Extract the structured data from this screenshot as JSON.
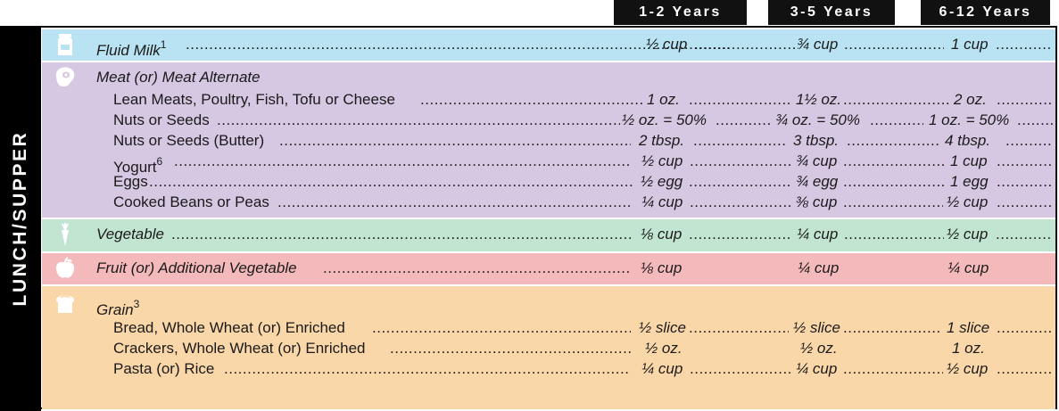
{
  "meal_label": "LUNCH/SUPPER",
  "age_groups": [
    "1-2 Years",
    "3-5 Years",
    "6-12 Years"
  ],
  "colors": {
    "milk": "#b9e3f2",
    "meat": "#d6c7e2",
    "vegetable": "#c2e5d2",
    "fruit": "#f4b9bb",
    "grain": "#fad7a9",
    "header": "#111111"
  },
  "sections": {
    "milk": {
      "icon": "milk-carton-icon",
      "label": "Fluid Milk",
      "note": "1",
      "values": [
        "½ cup",
        "¾ cup",
        "1 cup"
      ]
    },
    "meat": {
      "icon": "steak-icon",
      "label": "Meat (or) Meat Alternate",
      "items": [
        {
          "label": "Lean Meats, Poultry, Fish, Tofu or Cheese",
          "note": "",
          "values": [
            "1 oz.",
            "1½ oz.",
            "2 oz."
          ]
        },
        {
          "label": "Nuts or Seeds",
          "note": "",
          "values": [
            "½ oz. = 50%",
            "¾ oz. = 50%",
            "1 oz. = 50%"
          ]
        },
        {
          "label": "Nuts or Seeds (Butter)",
          "note": "",
          "values": [
            "2 tbsp.",
            "3 tbsp.",
            "4 tbsp."
          ]
        },
        {
          "label": "Yogurt",
          "note": "6",
          "values": [
            "½ cup",
            "¾ cup",
            "1 cup"
          ]
        },
        {
          "label": "Eggs",
          "note": "",
          "values": [
            "½ egg",
            "¾ egg",
            "1 egg"
          ]
        },
        {
          "label": "Cooked Beans or Peas",
          "note": "",
          "values": [
            "¼ cup",
            "⅜ cup",
            "½ cup"
          ]
        }
      ]
    },
    "vegetable": {
      "icon": "carrot-icon",
      "label": "Vegetable",
      "values": [
        "⅛ cup",
        "¼ cup",
        "½ cup"
      ]
    },
    "fruit": {
      "icon": "apple-icon",
      "label": "Fruit (or) Additional Vegetable",
      "values": [
        "⅛ cup",
        "¼ cup",
        "¼ cup"
      ]
    },
    "grain": {
      "icon": "bread-icon",
      "label": "Grain",
      "note": "3",
      "items": [
        {
          "label": "Bread, Whole Wheat (or) Enriched",
          "values": [
            "½ slice",
            "½ slice",
            "1 slice"
          ]
        },
        {
          "label": "Crackers, Whole Wheat (or) Enriched",
          "values": [
            "½ oz.",
            "½ oz.",
            "1 oz."
          ]
        },
        {
          "label": "Pasta (or) Rice",
          "values": [
            "¼ cup",
            "¼ cup",
            "½  cup"
          ]
        }
      ]
    }
  }
}
